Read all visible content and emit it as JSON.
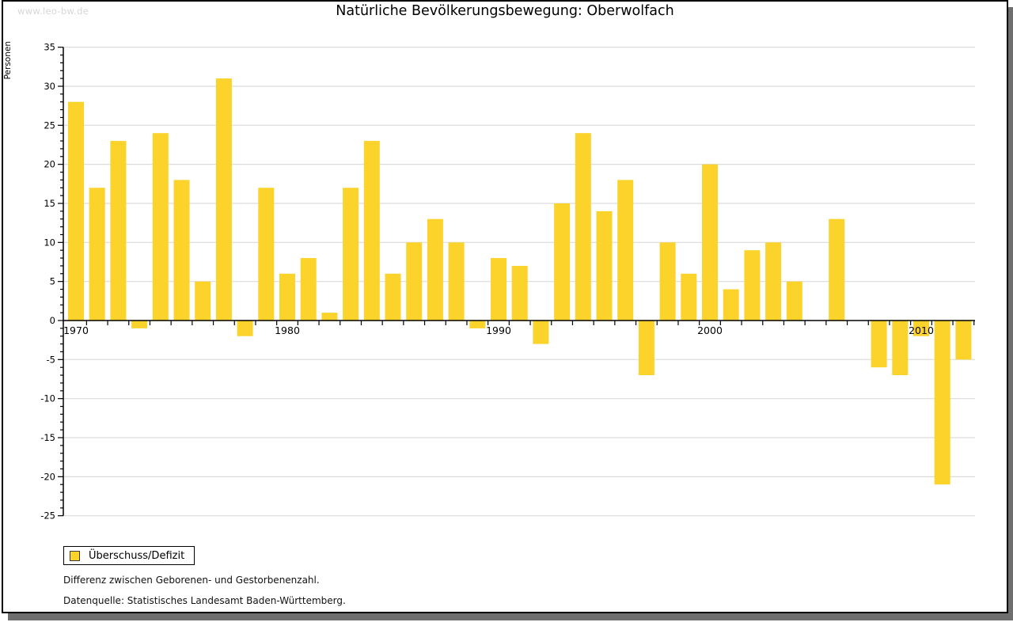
{
  "page": {
    "watermark": "www.leo-bw.de",
    "title": "Natürliche Bevölkerungsbewegung: Oberwolfach"
  },
  "legend": {
    "label": "Überschuss/Defizit"
  },
  "footnotes": {
    "line1": "Differenz zwischen Geborenen- und Gestorbenenzahl.",
    "line2": "Datenquelle: Statistisches Landesamt Baden-Württemberg."
  },
  "colors": {
    "bar": "#FCD32B",
    "grid": "#dcdcdc",
    "axis": "#000000",
    "watermark": "#d7d7d7",
    "frame_shadow": "#6e6e6e"
  },
  "chart_data": {
    "type": "bar",
    "title": "Natürliche Bevölkerungsbewegung: Oberwolfach",
    "series_name": "Überschuss/Defizit",
    "xlabel": "",
    "ylabel": "Personen",
    "ylim": [
      -25,
      35
    ],
    "ytick_major_step": 5,
    "ytick_minor_step": 1,
    "grid": true,
    "legend_position": "bottom-left",
    "x": [
      1970,
      1971,
      1972,
      1973,
      1974,
      1975,
      1976,
      1977,
      1978,
      1979,
      1980,
      1981,
      1982,
      1983,
      1984,
      1985,
      1986,
      1987,
      1988,
      1989,
      1990,
      1991,
      1992,
      1993,
      1994,
      1995,
      1996,
      1997,
      1998,
      1999,
      2000,
      2001,
      2002,
      2003,
      2004,
      2005,
      2006,
      2007,
      2008,
      2009,
      2010,
      2011,
      2012
    ],
    "values": [
      28,
      17,
      23,
      -1,
      24,
      18,
      5,
      31,
      -2,
      17,
      6,
      8,
      1,
      17,
      23,
      6,
      10,
      13,
      10,
      -1,
      8,
      7,
      -3,
      15,
      24,
      14,
      18,
      -7,
      10,
      6,
      20,
      4,
      9,
      10,
      5,
      0,
      13,
      0,
      -6,
      -7,
      -2,
      -21,
      -5
    ],
    "xticks": [
      {
        "year": 1970,
        "label": "1970"
      },
      {
        "year": 1980,
        "label": "1980"
      },
      {
        "year": 1990,
        "label": "1990"
      },
      {
        "year": 2000,
        "label": "2000"
      },
      {
        "year": 2010,
        "label": "2010"
      }
    ]
  }
}
